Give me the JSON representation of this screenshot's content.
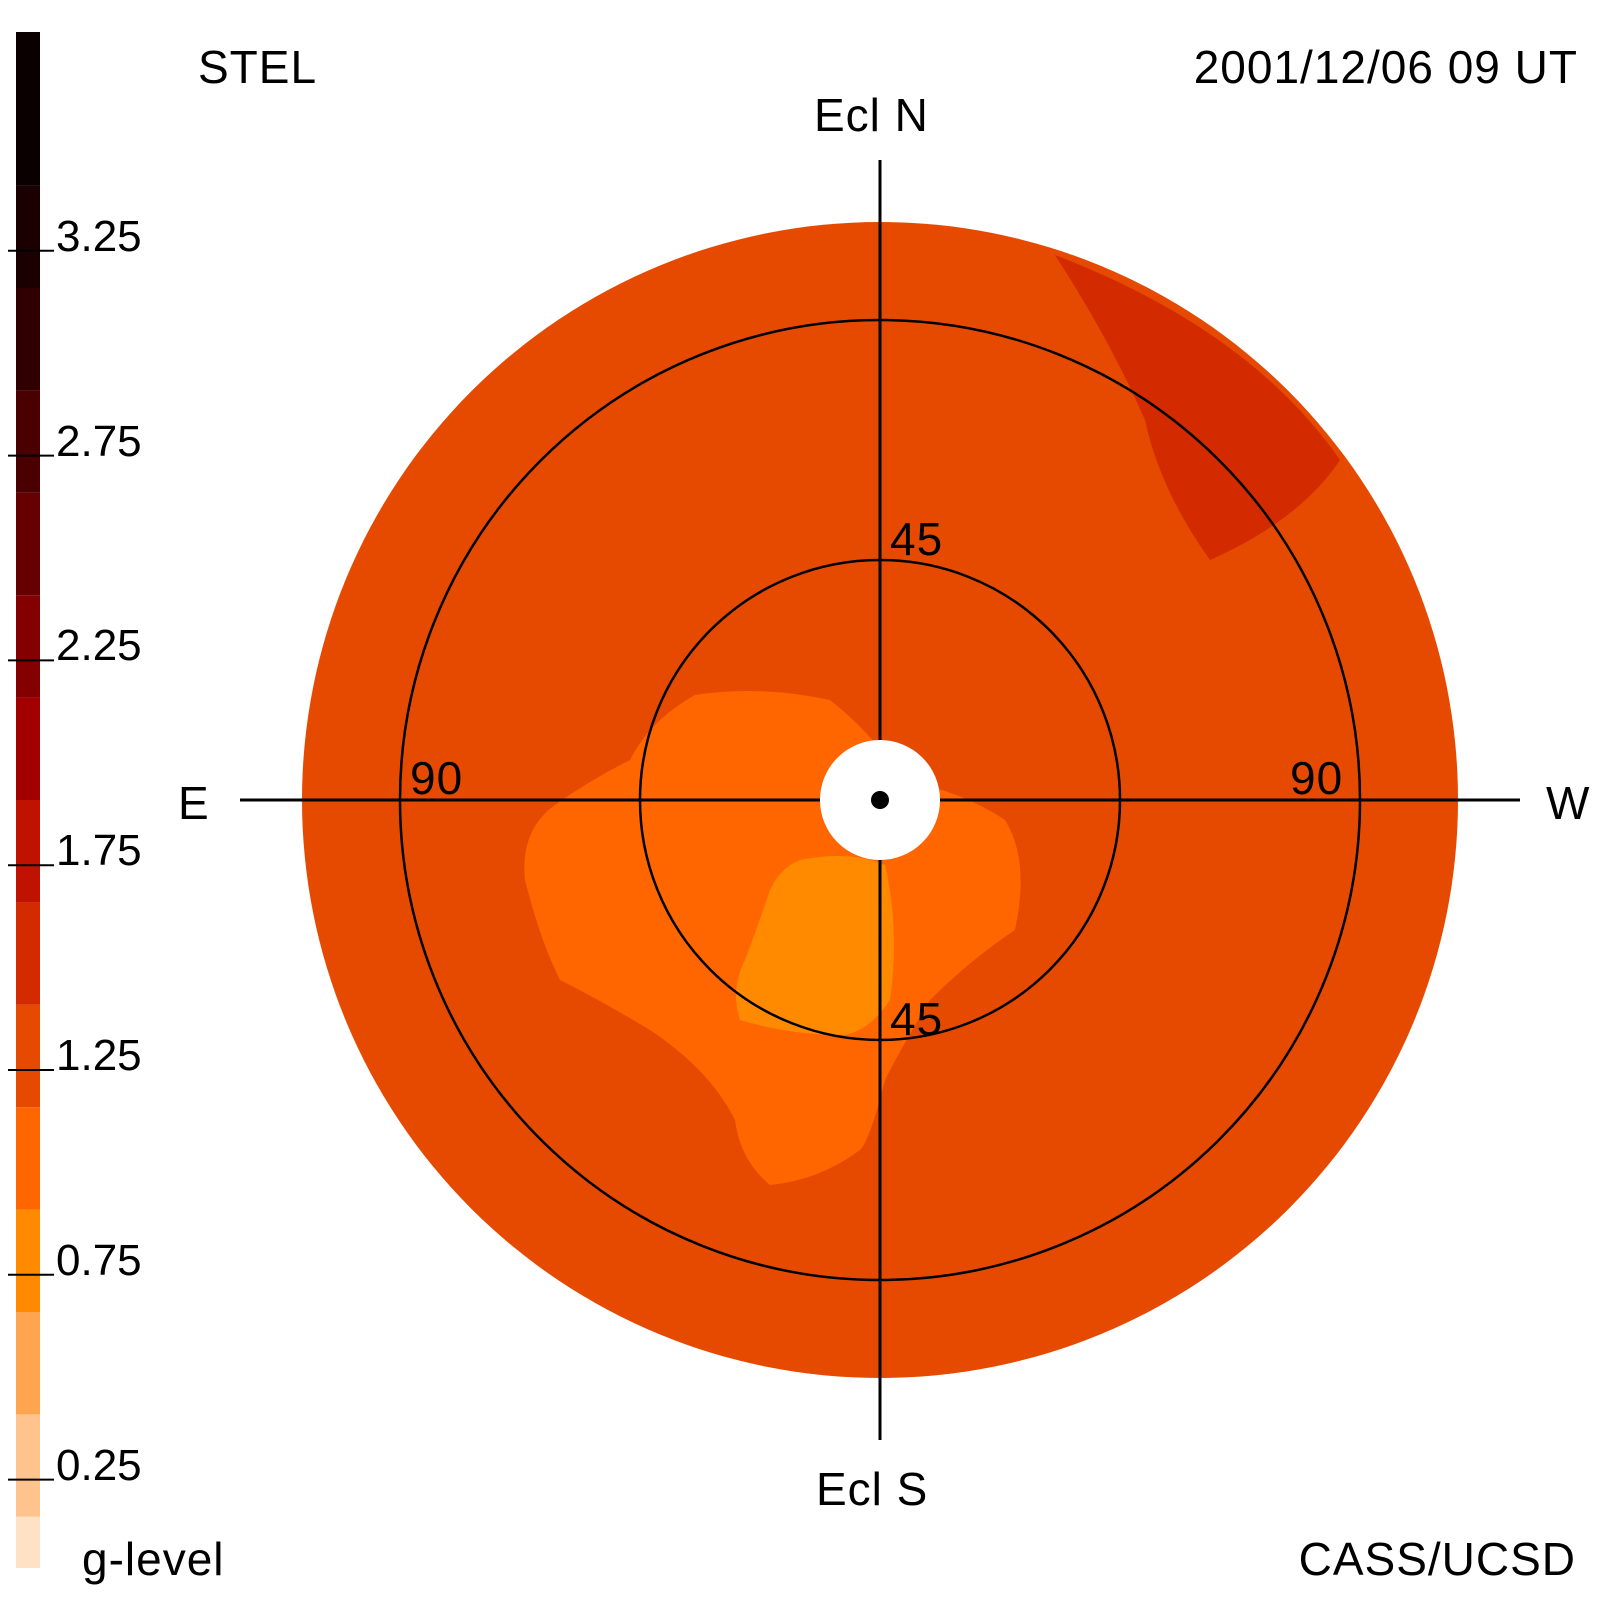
{
  "header": {
    "instrument": "STEL",
    "timestamp": "2001/12/06 09 UT"
  },
  "footer": {
    "colorbar_label": "g-level",
    "credit": "CASS/UCSD"
  },
  "compass": {
    "north": "Ecl N",
    "south": "Ecl S",
    "east": "E",
    "west": "W"
  },
  "rings": {
    "inner_label_top": "45",
    "inner_label_bottom": "45",
    "outer_label_east": "90",
    "outer_label_west": "90"
  },
  "colorbar": {
    "tick_labels": [
      "3.25",
      "2.75",
      "2.25",
      "1.75",
      "1.25",
      "0.75",
      "0.25"
    ],
    "levels": [
      {
        "min": 0.0,
        "color": "#ffe2c6"
      },
      {
        "min": 0.125,
        "color": "#ffc48e"
      },
      {
        "min": 0.375,
        "color": "#ffa54f"
      },
      {
        "min": 0.625,
        "color": "#ff8a00"
      },
      {
        "min": 0.875,
        "color": "#ff6600"
      },
      {
        "min": 1.125,
        "color": "#e64a00"
      },
      {
        "min": 1.375,
        "color": "#d32a00"
      },
      {
        "min": 1.625,
        "color": "#c01200"
      },
      {
        "min": 1.875,
        "color": "#a20000"
      },
      {
        "min": 2.125,
        "color": "#840000"
      },
      {
        "min": 2.375,
        "color": "#660000"
      },
      {
        "min": 2.625,
        "color": "#4a0000"
      },
      {
        "min": 2.875,
        "color": "#300000"
      },
      {
        "min": 3.125,
        "color": "#1a0000"
      },
      {
        "min": 3.375,
        "color": "#0b0000"
      }
    ]
  },
  "sky_map": {
    "background_color": "#e64a00",
    "enhancement_color": "#d32a00",
    "center_lower_color": "#ff6600",
    "center_core_color": "#ff8a00",
    "sun_mask_color": "#ffffff"
  }
}
